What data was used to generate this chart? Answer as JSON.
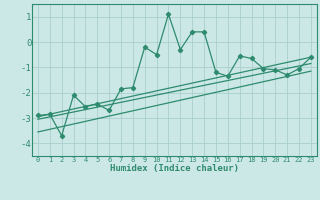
{
  "x": [
    0,
    1,
    2,
    3,
    4,
    5,
    6,
    7,
    8,
    9,
    10,
    11,
    12,
    13,
    14,
    15,
    16,
    17,
    18,
    19,
    20,
    21,
    22,
    23
  ],
  "y_main": [
    -2.9,
    -2.85,
    -3.7,
    -2.1,
    -2.55,
    -2.45,
    -2.7,
    -1.85,
    -1.8,
    -0.2,
    -0.5,
    1.1,
    -0.3,
    0.4,
    0.4,
    -1.2,
    -1.35,
    -0.55,
    -0.65,
    -1.05,
    -1.1,
    -1.3,
    -1.05,
    -0.6
  ],
  "line_color": "#2e8b6e",
  "bg_color": "#cce8e6",
  "grid_color": "#aacfcc",
  "axis_color": "#2e8b6e",
  "xlabel": "Humidex (Indice chaleur)",
  "ylim": [
    -4.5,
    1.5
  ],
  "xlim": [
    -0.5,
    23.5
  ],
  "yticks": [
    -4,
    -3,
    -2,
    -1,
    0,
    1
  ],
  "xticks": [
    0,
    1,
    2,
    3,
    4,
    5,
    6,
    7,
    8,
    9,
    10,
    11,
    12,
    13,
    14,
    15,
    16,
    17,
    18,
    19,
    20,
    21,
    22,
    23
  ],
  "reg1": [
    -2.95,
    -0.6
  ],
  "reg2": [
    -3.05,
    -0.85
  ],
  "reg3": [
    -3.55,
    -1.15
  ]
}
